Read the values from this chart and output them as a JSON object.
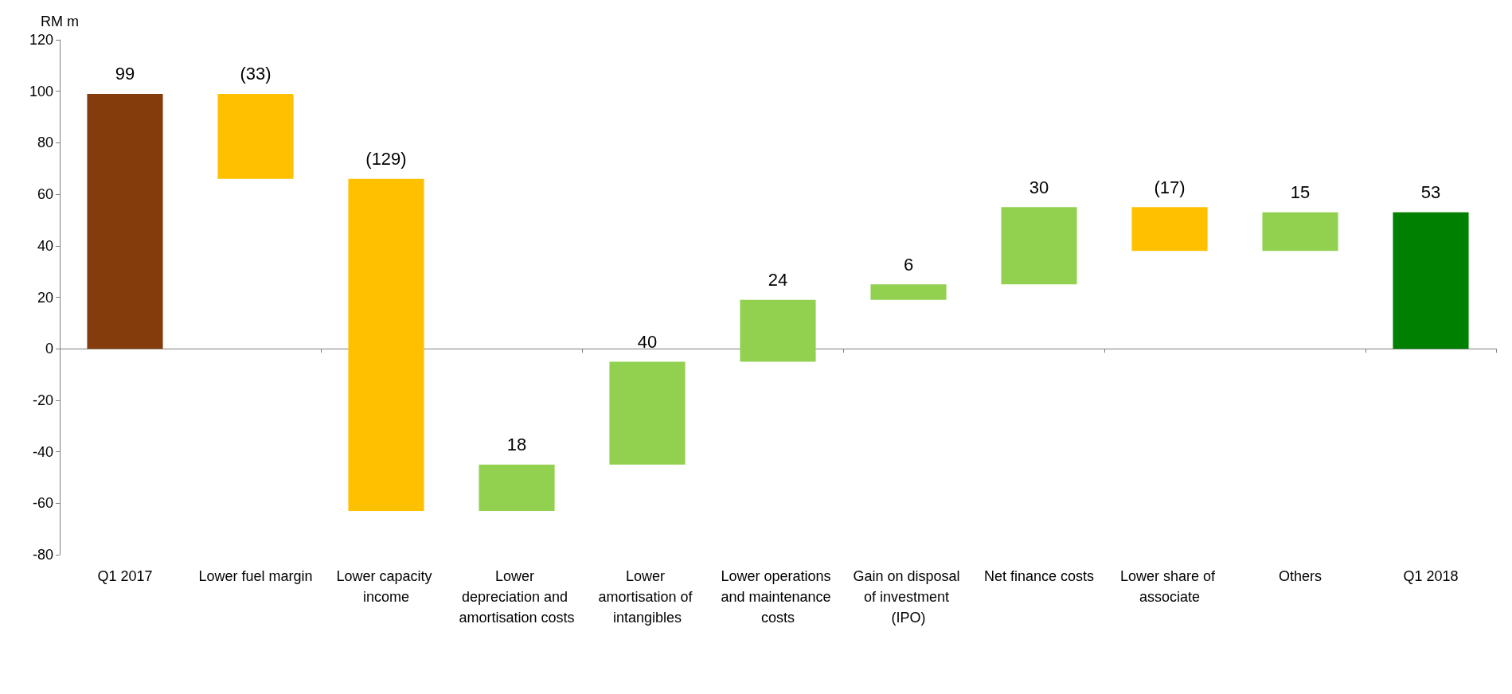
{
  "chart_data": {
    "type": "bar",
    "ylabel": "RM m",
    "categories": [
      "Q1 2017",
      "Lower fuel margin",
      "Lower capacity income",
      "Lower depreciation and amortisation costs",
      "Lower amortisation of intangibles",
      "Lower operations and maintenance costs",
      "Gain on disposal of investment (IPO)",
      "Net finance costs",
      "Lower share of associate",
      "Others",
      "Q1 2018"
    ],
    "values": [
      99,
      -33,
      -129,
      18,
      40,
      24,
      6,
      30,
      -17,
      15,
      53
    ],
    "base": [
      0,
      99,
      66,
      -63,
      -45,
      -5,
      19,
      25,
      55,
      38,
      0
    ],
    "colors": [
      "#843c0c",
      "#ffc000",
      "#ffc000",
      "#92d050",
      "#92d050",
      "#92d050",
      "#92d050",
      "#92d050",
      "#ffc000",
      "#92d050",
      "#008000"
    ],
    "value_labels": [
      "99",
      "(33)",
      "(129)",
      "18",
      "40",
      "24",
      "6",
      "30",
      "(17)",
      "15",
      "53"
    ],
    "ylim": [
      -80,
      120
    ],
    "yticks": [
      -80,
      -60,
      -40,
      -20,
      0,
      20,
      40,
      60,
      80,
      100,
      120
    ]
  }
}
